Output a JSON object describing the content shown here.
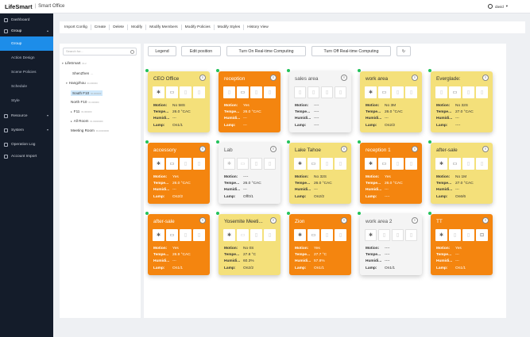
{
  "app": {
    "brand": "LifeSmart",
    "subtitle": "Smart Office",
    "user": "david"
  },
  "sidebar": {
    "items": [
      {
        "label": "Dashboard",
        "type": "top"
      },
      {
        "label": "Group",
        "type": "group-open"
      },
      {
        "label": "Group",
        "type": "sub-active"
      },
      {
        "label": "Action Design",
        "type": "sub"
      },
      {
        "label": "Scene Policies",
        "type": "sub"
      },
      {
        "label": "Schedule",
        "type": "sub"
      },
      {
        "label": "Style",
        "type": "sub"
      },
      {
        "label": "Resource",
        "type": "top-chev"
      },
      {
        "label": "System",
        "type": "top-chev"
      },
      {
        "label": "Operation Log",
        "type": "top"
      },
      {
        "label": "Account Import",
        "type": "top"
      }
    ]
  },
  "toolbar": {
    "items": [
      "Import Config",
      "Create",
      "Delete",
      "Modify",
      "Modify Members",
      "Modify Policies",
      "Modify Styles",
      "History View"
    ]
  },
  "tree": {
    "search_placeholder": "Search for...",
    "nodes": [
      {
        "label": "LifeSmart",
        "meta": "ID-2",
        "arrow": "▾"
      },
      {
        "label": "ShenZhen",
        "meta": "—",
        "arrow": ""
      },
      {
        "label": "Hangzhou",
        "meta": "ID-000000",
        "arrow": "▾"
      },
      {
        "label": "South F10",
        "meta": "ID-000000",
        "arrow": ""
      },
      {
        "label": "North F10",
        "meta": "ID-000000",
        "arrow": ""
      },
      {
        "label": "F11",
        "meta": "ID-000000",
        "arrow": "▸"
      },
      {
        "label": "All Room",
        "meta": "ID-00000000",
        "arrow": "▸"
      },
      {
        "label": "Meeting Room",
        "meta": "ID-00000000",
        "arrow": ""
      }
    ]
  },
  "main": {
    "buttons": [
      "Legend",
      "Edit position",
      "Turn On Real-time Computing",
      "Turn Off Real-time Computing"
    ],
    "refresh_icon": "↻",
    "labels": {
      "motion": "Motion:",
      "temp": "Tempe...",
      "humid": "Humidi...",
      "lamp": "Lamp:"
    },
    "cards": [
      {
        "title": "CEO Office",
        "color": "yellow",
        "motion": "No 58S",
        "temp": "26.0 °CAC",
        "humid": "---",
        "lamp": "On1/1",
        "icons": [
          "lamp",
          "ac",
          "off",
          "off"
        ]
      },
      {
        "title": "reception",
        "color": "orange",
        "motion": "Yes",
        "temp": "26.0 °CAC",
        "humid": "---",
        "lamp": "---",
        "icons": [
          "off",
          "ac",
          "off",
          "off"
        ]
      },
      {
        "title": "sales area",
        "color": "gray",
        "motion": "----",
        "temp": "----",
        "humid": "----",
        "lamp": "----",
        "icons": [
          "off",
          "off",
          "off",
          "off"
        ]
      },
      {
        "title": "work area",
        "color": "yellow",
        "motion": "No 3M",
        "temp": "26.0 °CAC",
        "humid": "---",
        "lamp": "On2/2",
        "icons": [
          "lamp",
          "ac",
          "off",
          "off"
        ]
      },
      {
        "title": "Everglade:",
        "color": "yellow",
        "motion": "No 32S",
        "temp": "27.0 °CAC",
        "humid": "---",
        "lamp": "----",
        "icons": [
          "off",
          "ac",
          "off",
          "off"
        ]
      },
      {
        "title": "accessory",
        "color": "orange",
        "motion": "Yes",
        "temp": "26.0 °CAC",
        "humid": "---",
        "lamp": "On2/2",
        "icons": [
          "lamp",
          "ac",
          "off",
          "off"
        ]
      },
      {
        "title": "Lab",
        "color": "gray",
        "motion": "----",
        "temp": "26.0 °CAC",
        "humid": "---",
        "lamp": "Off0/1",
        "icons": [
          "lamp-off",
          "ac-off",
          "off",
          "off"
        ]
      },
      {
        "title": "Lake Tahoe",
        "color": "yellow",
        "motion": "No 32S",
        "temp": "26.0 °CAC",
        "humid": "---",
        "lamp": "On2/2",
        "icons": [
          "lamp",
          "ac",
          "off",
          "off"
        ]
      },
      {
        "title": "reception 1",
        "color": "orange",
        "motion": "Yes",
        "temp": "26.0 °CAC",
        "humid": "---",
        "lamp": "----",
        "icons": [
          "lamp",
          "ac",
          "off",
          "off"
        ]
      },
      {
        "title": "after-sale",
        "color": "yellow",
        "motion": "No 1M",
        "temp": "27.0 °CAC",
        "humid": "---",
        "lamp": "On6/6",
        "icons": [
          "lamp",
          "ac",
          "off",
          "off"
        ]
      },
      {
        "title": "after-sale",
        "color": "orange",
        "motion": "Yes",
        "temp": "26.9 °CAC",
        "humid": "---",
        "lamp": "On1/1",
        "icons": [
          "lamp",
          "ac",
          "off",
          "off"
        ]
      },
      {
        "title": "Yosemite Meeti...",
        "color": "yellow",
        "motion": "No 0S",
        "temp": "27.8 °C",
        "humid": "60.3%",
        "lamp": "On2/2",
        "icons": [
          "lamp",
          "ac-off",
          "off",
          "off"
        ]
      },
      {
        "title": "Zion",
        "color": "orange",
        "motion": "Yes",
        "temp": "27.7 °C",
        "humid": "57.8%",
        "lamp": "On1/1",
        "icons": [
          "lamp",
          "ac",
          "off",
          "off"
        ]
      },
      {
        "title": "work area 2",
        "color": "gray",
        "motion": "----",
        "temp": "----",
        "humid": "----",
        "lamp": "On1/1",
        "icons": [
          "lamp",
          "off",
          "off",
          "off"
        ]
      },
      {
        "title": "TT",
        "color": "orange",
        "motion": "Yes",
        "temp": "---",
        "humid": "---",
        "lamp": "On1/1",
        "icons": [
          "lamp",
          "off",
          "off",
          "socket"
        ]
      }
    ]
  }
}
